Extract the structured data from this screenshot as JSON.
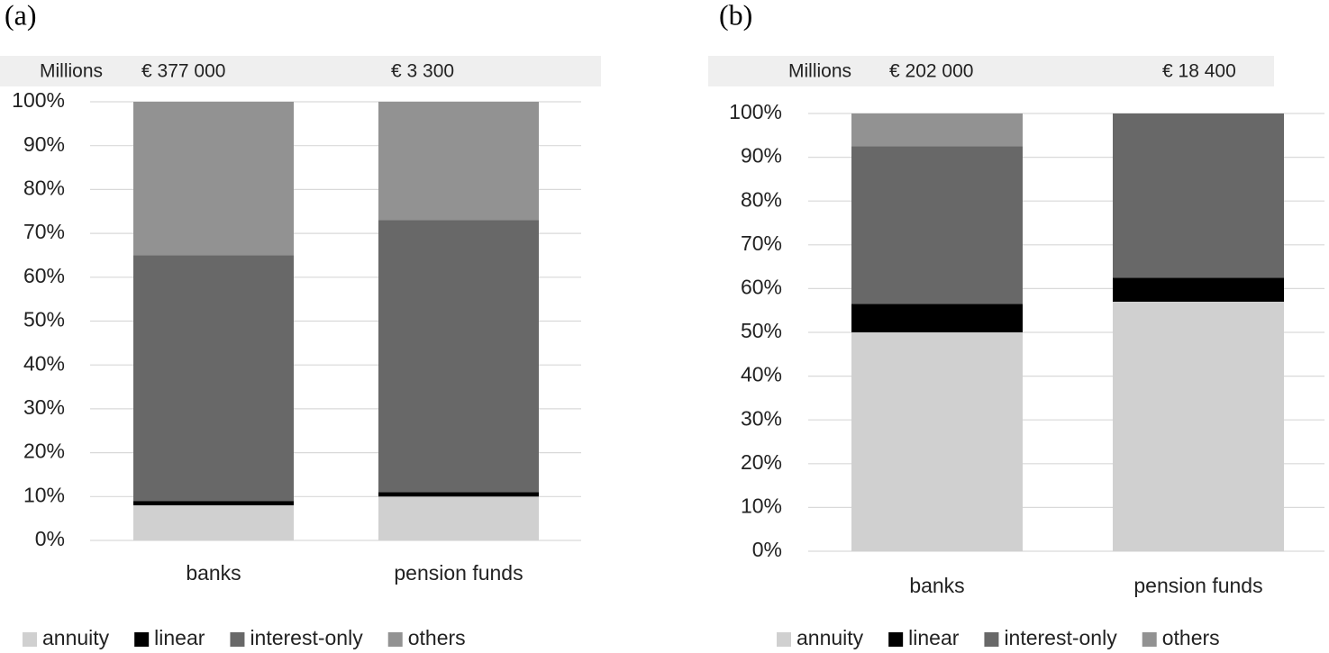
{
  "chart_data": [
    {
      "type": "stacked_bar",
      "panel_label": "(a)",
      "header_label": "Millions",
      "header_values": [
        "€ 377 000",
        "€ 3 300"
      ],
      "categories": [
        "banks",
        "pension funds"
      ],
      "series": [
        {
          "name": "annuity",
          "color": "#d0d0d0",
          "values": [
            8,
            10
          ]
        },
        {
          "name": "linear",
          "color": "#000000",
          "values": [
            1,
            1
          ]
        },
        {
          "name": "interest-only",
          "color": "#686868",
          "values": [
            56,
            62
          ]
        },
        {
          "name": "others",
          "color": "#929292",
          "values": [
            35,
            27
          ]
        }
      ],
      "ylim": [
        0,
        100
      ],
      "yticks": [
        {
          "value": 0,
          "label": "0%"
        },
        {
          "value": 10,
          "label": "10%"
        },
        {
          "value": 20,
          "label": "20%"
        },
        {
          "value": 30,
          "label": "30%"
        },
        {
          "value": 40,
          "label": "40%"
        },
        {
          "value": 50,
          "label": "50%"
        },
        {
          "value": 60,
          "label": "60%"
        },
        {
          "value": 70,
          "label": "70%"
        },
        {
          "value": 80,
          "label": "80%"
        },
        {
          "value": 90,
          "label": "90%"
        },
        {
          "value": 100,
          "label": "100%"
        }
      ],
      "grid": true,
      "legend": "bottom"
    },
    {
      "type": "stacked_bar",
      "panel_label": "(b)",
      "header_label": "Millions",
      "header_values": [
        "€ 202 000",
        "€ 18 400"
      ],
      "categories": [
        "banks",
        "pension funds"
      ],
      "series": [
        {
          "name": "annuity",
          "color": "#d0d0d0",
          "values": [
            50,
            57
          ]
        },
        {
          "name": "linear",
          "color": "#000000",
          "values": [
            6.5,
            5.5
          ]
        },
        {
          "name": "interest-only",
          "color": "#686868",
          "values": [
            36,
            37.5
          ]
        },
        {
          "name": "others",
          "color": "#929292",
          "values": [
            7.5,
            0
          ]
        }
      ],
      "ylim": [
        0,
        100
      ],
      "yticks": [
        {
          "value": 0,
          "label": "0%"
        },
        {
          "value": 10,
          "label": "10%"
        },
        {
          "value": 20,
          "label": "20%"
        },
        {
          "value": 30,
          "label": "30%"
        },
        {
          "value": 40,
          "label": "40%"
        },
        {
          "value": 50,
          "label": "50%"
        },
        {
          "value": 60,
          "label": "60%"
        },
        {
          "value": 70,
          "label": "70%"
        },
        {
          "value": 80,
          "label": "80%"
        },
        {
          "value": 90,
          "label": "90%"
        },
        {
          "value": 100,
          "label": "100%"
        }
      ],
      "grid": true,
      "legend": "bottom"
    }
  ]
}
